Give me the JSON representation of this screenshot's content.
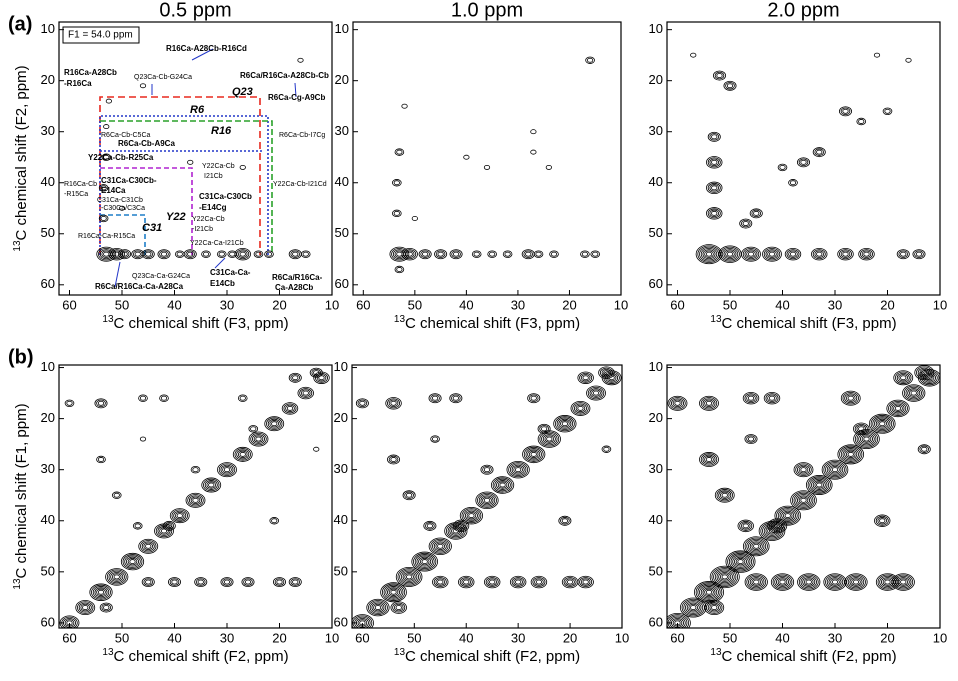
{
  "panel_labels": [
    "(a)",
    "(b)"
  ],
  "chart_data": [
    {
      "type": "contour",
      "title": "0.5 ppm",
      "xlabel_sup": "13",
      "xlabel": "C chemical shift (F3, ppm)",
      "ylabel_sup": "13",
      "ylabel": "C chemical shift (F2, ppm)",
      "xlim": [
        62,
        10
      ],
      "ylim": [
        62,
        8.5
      ],
      "xticks": [
        60,
        50,
        40,
        30,
        20,
        10
      ],
      "yticks": [
        10,
        20,
        30,
        40,
        50,
        60
      ],
      "peaks": {
        "x": [
          53,
          51,
          49.5,
          47,
          45,
          42,
          39,
          37,
          34,
          31,
          29,
          27,
          24,
          22,
          17,
          15,
          53.5,
          53.5,
          53,
          53,
          52.5,
          46,
          50,
          27,
          37,
          16
        ],
        "y": [
          54,
          54,
          54,
          54,
          54,
          54,
          54,
          54,
          54,
          54,
          54,
          54,
          54,
          54,
          54,
          54,
          47,
          41,
          35,
          29,
          24,
          21,
          45,
          37,
          36,
          16
        ],
        "intensity": [
          5,
          4,
          3,
          3,
          3,
          3,
          2,
          3,
          2,
          2,
          2,
          4,
          2,
          2,
          3,
          2,
          2,
          2,
          2,
          1,
          1,
          1,
          1,
          1,
          1,
          1
        ]
      },
      "annotations": [
        {
          "text": "F1 = 54.0 ppm",
          "color": "#000000"
        },
        {
          "text": "R16Ca-A28Cb-R16Cd",
          "color": "#b34a14"
        },
        {
          "text": "R16Ca-A28Cb",
          "color": "#b34a14"
        },
        {
          "text": "-R16Ca",
          "color": "#b34a14"
        },
        {
          "text": "Q23Ca-Cb-G24Ca",
          "color": "#000000"
        },
        {
          "text": "R6Ca/R16Ca-A28Cb-Cb",
          "color": "#b34a14"
        },
        {
          "text": "Q23",
          "color": "#e8281e"
        },
        {
          "text": "R6Ca-Cg-A9Cb",
          "color": "#b34a14"
        },
        {
          "text": "R6",
          "color": "#2236c8"
        },
        {
          "text": "R16",
          "color": "#2aa12a"
        },
        {
          "text": "R6Ca-Cb-C5Ca",
          "color": "#000000"
        },
        {
          "text": "R6Ca-Cb-A9Ca",
          "color": "#b34a14"
        },
        {
          "text": "R6Ca-Cb-I7Cg",
          "color": "#000000"
        },
        {
          "text": "Y22Ca-Cb-R25Ca",
          "color": "#b34a14"
        },
        {
          "text": "Y22Ca-Cb",
          "color": "#000000"
        },
        {
          "text": "I21Cb",
          "color": "#000000"
        },
        {
          "text": "R16Ca-Cb",
          "color": "#000000"
        },
        {
          "text": "-R15Ca",
          "color": "#000000"
        },
        {
          "text": "C31Ca-C30Cb-",
          "color": "#b34a14"
        },
        {
          "text": "E14Ca",
          "color": "#b34a14"
        },
        {
          "text": "Y22Ca-Cb-I21Cd",
          "color": "#000000"
        },
        {
          "text": "C31Ca-C30Cb",
          "color": "#b34a14"
        },
        {
          "text": "-E14Cg",
          "color": "#b34a14"
        },
        {
          "text": "C31Ca-C31Cb",
          "color": "#000000"
        },
        {
          "text": "-C30Ca/C3Ca",
          "color": "#000000"
        },
        {
          "text": "Y22",
          "color": "#b023d0"
        },
        {
          "text": "Y22Ca-Cb",
          "color": "#000000"
        },
        {
          "text": "-I21Cb",
          "color": "#000000"
        },
        {
          "text": "C31",
          "color": "#1f7fc8"
        },
        {
          "text": "R16Ca-Ca-R15Ca",
          "color": "#000000"
        },
        {
          "text": "Y22Ca-Ca-I21Cb",
          "color": "#000000"
        },
        {
          "text": "C31Ca-Ca-",
          "color": "#b34a14"
        },
        {
          "text": "E14Cb",
          "color": "#b34a14"
        },
        {
          "text": "Q23Ca-Ca-G24Ca",
          "color": "#000000"
        },
        {
          "text": "R6Ca/R16Ca-Ca-A28Ca",
          "color": "#b34a14"
        },
        {
          "text": "R6Ca/R16Ca-",
          "color": "#b34a14"
        },
        {
          "text": "Ca-A28Cb",
          "color": "#b34a14"
        }
      ]
    },
    {
      "type": "contour",
      "title": "1.0 ppm",
      "xlabel_sup": "13",
      "xlabel": "C chemical shift (F3, ppm)",
      "xlim": [
        62,
        10
      ],
      "ylim": [
        62,
        8.5
      ],
      "xticks": [
        60,
        50,
        40,
        30,
        20,
        10
      ],
      "yticks": [
        10,
        20,
        30,
        40,
        50,
        60
      ],
      "peaks": {
        "x": [
          53,
          51,
          48,
          45,
          42,
          38,
          35,
          32,
          28,
          26,
          23,
          17,
          15,
          53.5,
          53.5,
          53,
          52,
          50,
          40,
          36,
          27,
          24,
          27,
          16,
          53
        ],
        "y": [
          54,
          54,
          54,
          54,
          54,
          54,
          54,
          54,
          54,
          54,
          54,
          54,
          54,
          46,
          40,
          34,
          25,
          47,
          35,
          37,
          34,
          37,
          30,
          16,
          57
        ],
        "intensity": [
          5,
          4,
          3,
          3,
          3,
          2,
          2,
          2,
          3,
          2,
          2,
          2,
          2,
          2,
          2,
          2,
          1,
          1,
          1,
          1,
          1,
          1,
          1,
          2,
          2
        ]
      }
    },
    {
      "type": "contour",
      "title": "2.0 ppm",
      "xlabel_sup": "13",
      "xlabel": "C chemical shift (F3, ppm)",
      "xlim": [
        62,
        10
      ],
      "ylim": [
        62,
        8.5
      ],
      "xticks": [
        60,
        50,
        40,
        30,
        20,
        10
      ],
      "yticks": [
        10,
        20,
        30,
        40,
        50,
        60
      ],
      "peaks": {
        "x": [
          54,
          50,
          46,
          42,
          38,
          33,
          28,
          24,
          17,
          14,
          53,
          53,
          53,
          53,
          47,
          45,
          52,
          50,
          40,
          36,
          33,
          28,
          25,
          20,
          16,
          38,
          57,
          22
        ],
        "y": [
          54,
          54,
          54,
          54,
          54,
          54,
          54,
          54,
          54,
          54,
          46,
          41,
          36,
          31,
          48,
          46,
          19,
          21,
          37,
          36,
          34,
          26,
          28,
          26,
          16,
          40,
          15,
          15
        ],
        "intensity": [
          7,
          6,
          5,
          5,
          4,
          4,
          4,
          4,
          3,
          3,
          4,
          4,
          4,
          3,
          3,
          3,
          3,
          3,
          2,
          3,
          3,
          3,
          2,
          2,
          1,
          2,
          1,
          1
        ]
      }
    },
    {
      "type": "contour",
      "xlabel_sup": "13",
      "xlabel": "C chemical shift (F2, ppm)",
      "ylabel_sup": "13",
      "ylabel": "C chemical shift (F1, ppm)",
      "xlim": [
        62,
        10
      ],
      "ylim": [
        61,
        9.5
      ],
      "xticks": [
        60,
        50,
        40,
        30,
        20,
        10
      ],
      "yticks": [
        10,
        20,
        30,
        40,
        50,
        60
      ],
      "peaks": {
        "x": [
          60,
          57,
          54,
          51,
          48,
          45,
          42,
          39,
          36,
          33,
          30,
          27,
          24,
          21,
          18,
          15,
          12,
          60,
          54,
          46,
          42,
          27,
          17,
          13,
          54,
          51,
          47,
          41,
          36,
          25,
          45,
          40,
          35,
          30,
          26,
          20,
          17,
          21,
          13,
          46,
          53
        ],
        "y": [
          60,
          57,
          54,
          51,
          48,
          45,
          42,
          39,
          36,
          33,
          30,
          27,
          24,
          21,
          18,
          15,
          12,
          17,
          17,
          16,
          16,
          16,
          12,
          11,
          28,
          35,
          41,
          41,
          30,
          22,
          52,
          52,
          52,
          52,
          52,
          52,
          52,
          40,
          26,
          24,
          57
        ],
        "intensity": [
          5,
          5,
          6,
          6,
          6,
          5,
          5,
          5,
          5,
          5,
          5,
          5,
          5,
          5,
          4,
          4,
          4,
          2,
          3,
          2,
          2,
          2,
          3,
          3,
          2,
          2,
          2,
          3,
          2,
          2,
          3,
          3,
          3,
          3,
          3,
          3,
          3,
          2,
          1,
          1,
          3
        ]
      }
    },
    {
      "type": "contour",
      "xlabel_sup": "13",
      "xlabel": "C chemical shift (F2, ppm)",
      "xlim": [
        62,
        10
      ],
      "ylim": [
        61,
        9.5
      ],
      "xticks": [
        60,
        50,
        40,
        30,
        20,
        10
      ],
      "yticks": [
        10,
        20,
        30,
        40,
        50,
        60
      ],
      "peaks": {
        "x": [
          60,
          57,
          54,
          51,
          48,
          45,
          42,
          39,
          36,
          33,
          30,
          27,
          24,
          21,
          18,
          15,
          12,
          60,
          54,
          46,
          42,
          27,
          17,
          13,
          54,
          51,
          47,
          41,
          36,
          25,
          45,
          40,
          35,
          30,
          26,
          20,
          17,
          21,
          13,
          46,
          53
        ],
        "y": [
          60,
          57,
          54,
          51,
          48,
          45,
          42,
          39,
          36,
          33,
          30,
          27,
          24,
          21,
          18,
          15,
          12,
          17,
          17,
          16,
          16,
          16,
          12,
          11,
          28,
          35,
          41,
          41,
          30,
          22,
          52,
          52,
          52,
          52,
          52,
          52,
          52,
          40,
          26,
          24,
          57
        ],
        "intensity": [
          6,
          6,
          7,
          7,
          7,
          6,
          6,
          6,
          6,
          6,
          6,
          6,
          6,
          6,
          5,
          5,
          5,
          3,
          4,
          3,
          3,
          3,
          4,
          4,
          3,
          3,
          3,
          4,
          3,
          3,
          4,
          4,
          4,
          4,
          4,
          4,
          4,
          3,
          2,
          2,
          4
        ]
      }
    },
    {
      "type": "contour",
      "xlabel_sup": "13",
      "xlabel": "C chemical shift (F2, ppm)",
      "xlim": [
        62,
        10
      ],
      "ylim": [
        61,
        9.5
      ],
      "xticks": [
        60,
        50,
        40,
        30,
        20,
        10
      ],
      "yticks": [
        10,
        20,
        30,
        40,
        50,
        60
      ],
      "peaks": {
        "x": [
          60,
          57,
          54,
          51,
          48,
          45,
          42,
          39,
          36,
          33,
          30,
          27,
          24,
          21,
          18,
          15,
          12,
          60,
          54,
          46,
          42,
          27,
          17,
          13,
          54,
          51,
          47,
          41,
          36,
          25,
          45,
          40,
          35,
          30,
          26,
          20,
          17,
          21,
          13,
          46,
          53
        ],
        "y": [
          60,
          57,
          54,
          51,
          48,
          45,
          42,
          39,
          36,
          33,
          30,
          27,
          24,
          21,
          18,
          15,
          12,
          17,
          17,
          16,
          16,
          16,
          12,
          11,
          28,
          35,
          41,
          41,
          30,
          22,
          52,
          52,
          52,
          52,
          52,
          52,
          52,
          40,
          26,
          24,
          57
        ],
        "intensity": [
          7,
          7,
          8,
          8,
          8,
          7,
          7,
          7,
          7,
          7,
          7,
          7,
          7,
          7,
          6,
          6,
          6,
          5,
          5,
          4,
          4,
          5,
          5,
          5,
          5,
          5,
          4,
          5,
          5,
          4,
          6,
          6,
          6,
          6,
          6,
          6,
          6,
          4,
          3,
          3,
          5
        ]
      }
    }
  ]
}
